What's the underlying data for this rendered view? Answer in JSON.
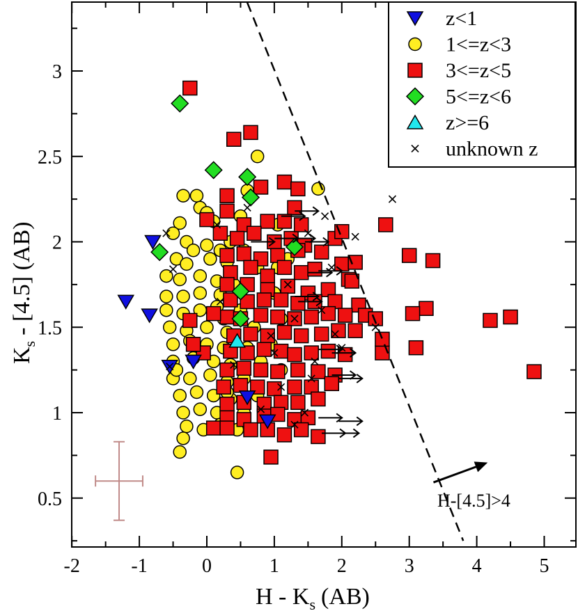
{
  "chart_data": {
    "type": "scatter",
    "xlabel": "H - K",
    "xlabel_sub": "s",
    "xlabel_suffix": "(AB)",
    "ylabel": "K",
    "ylabel_sub": "s",
    "ylabel_suffix": "- [4.5]  (AB)",
    "xlim": [
      -2,
      5.5
    ],
    "ylim": [
      0.25,
      3.4
    ],
    "xticks": [
      -2,
      -1,
      0,
      1,
      2,
      3,
      4,
      5
    ],
    "yticks": [
      0.5,
      1,
      1.5,
      2,
      2.5,
      3
    ],
    "legend_position": "top-right",
    "series": [
      {
        "name": "z<1",
        "marker": "triangle-down",
        "color": "#1010e0",
        "points": [
          [
            -1.2,
            1.65
          ],
          [
            -0.8,
            2.0
          ],
          [
            -0.85,
            1.57
          ],
          [
            -0.55,
            1.27
          ],
          [
            -0.2,
            1.3
          ],
          [
            0.6,
            1.09
          ],
          [
            0.9,
            0.95
          ]
        ]
      },
      {
        "name": "1<=z<3",
        "marker": "circle",
        "color": "#ffee22",
        "points": [
          [
            -0.35,
            2.27
          ],
          [
            -0.15,
            2.27
          ],
          [
            -0.1,
            2.2
          ],
          [
            -0.4,
            2.11
          ],
          [
            0.0,
            2.17
          ],
          [
            0.1,
            2.12
          ],
          [
            -0.5,
            2.05
          ],
          [
            -0.3,
            2.0
          ],
          [
            0.0,
            1.98
          ],
          [
            0.2,
            1.95
          ],
          [
            -0.45,
            1.9
          ],
          [
            -0.3,
            1.87
          ],
          [
            0.05,
            1.9
          ],
          [
            0.3,
            1.88
          ],
          [
            -0.6,
            1.8
          ],
          [
            -0.4,
            1.78
          ],
          [
            -0.1,
            1.8
          ],
          [
            0.15,
            1.77
          ],
          [
            0.4,
            1.75
          ],
          [
            -0.6,
            1.68
          ],
          [
            -0.35,
            1.68
          ],
          [
            -0.1,
            1.7
          ],
          [
            0.2,
            1.69
          ],
          [
            -0.6,
            1.6
          ],
          [
            -0.35,
            1.58
          ],
          [
            -0.1,
            1.6
          ],
          [
            0.15,
            1.62
          ],
          [
            -0.55,
            1.5
          ],
          [
            -0.3,
            1.48
          ],
          [
            0.0,
            1.5
          ],
          [
            0.3,
            1.47
          ],
          [
            -0.5,
            1.4
          ],
          [
            -0.25,
            1.42
          ],
          [
            0.0,
            1.4
          ],
          [
            0.25,
            1.38
          ],
          [
            -0.5,
            1.3
          ],
          [
            -0.2,
            1.32
          ],
          [
            0.1,
            1.3
          ],
          [
            0.35,
            1.28
          ],
          [
            -0.5,
            1.2
          ],
          [
            -0.25,
            1.2
          ],
          [
            0.05,
            1.22
          ],
          [
            0.3,
            1.18
          ],
          [
            -0.4,
            1.1
          ],
          [
            -0.15,
            1.12
          ],
          [
            0.1,
            1.1
          ],
          [
            0.35,
            1.08
          ],
          [
            -0.35,
            1.0
          ],
          [
            -0.1,
            1.02
          ],
          [
            0.15,
            1.0
          ],
          [
            -0.3,
            0.92
          ],
          [
            -0.05,
            0.9
          ],
          [
            -0.35,
            0.85
          ],
          [
            -0.4,
            0.77
          ],
          [
            0.45,
            0.65
          ],
          [
            0.75,
            2.5
          ],
          [
            0.6,
            2.3
          ],
          [
            0.5,
            2.15
          ],
          [
            0.7,
            2.05
          ],
          [
            0.55,
            1.95
          ],
          [
            0.75,
            1.85
          ],
          [
            0.6,
            1.75
          ],
          [
            0.5,
            1.6
          ],
          [
            0.7,
            1.5
          ],
          [
            0.6,
            1.38
          ],
          [
            0.8,
            1.3
          ],
          [
            0.55,
            1.2
          ],
          [
            0.75,
            1.1
          ],
          [
            0.55,
            1.0
          ],
          [
            0.45,
            0.9
          ],
          [
            1.05,
            1.85
          ],
          [
            1.0,
            1.7
          ],
          [
            1.1,
            1.55
          ],
          [
            0.95,
            1.4
          ],
          [
            1.1,
            1.25
          ],
          [
            1.2,
            1.9
          ],
          [
            1.65,
            2.31
          ],
          [
            1.05,
            2.1
          ],
          [
            0.35,
            2.0
          ],
          [
            0.25,
            1.55
          ],
          [
            0.4,
            1.45
          ],
          [
            0.3,
            1.12
          ],
          [
            -0.2,
            1.95
          ],
          [
            -0.45,
            1.25
          ],
          [
            0.2,
            0.93
          ]
        ]
      },
      {
        "name": "3<=z<5",
        "marker": "square",
        "color": "#ee1111",
        "points": [
          [
            -0.25,
            2.9
          ],
          [
            0.65,
            2.64
          ],
          [
            0.4,
            2.6
          ],
          [
            0.8,
            2.32
          ],
          [
            1.15,
            2.35
          ],
          [
            1.35,
            2.31
          ],
          [
            0.3,
            2.27
          ],
          [
            1.3,
            2.2
          ],
          [
            0.0,
            2.13
          ],
          [
            0.3,
            2.18
          ],
          [
            0.55,
            2.1
          ],
          [
            0.9,
            2.12
          ],
          [
            1.15,
            2.12
          ],
          [
            0.2,
            2.05
          ],
          [
            0.45,
            2.02
          ],
          [
            0.7,
            2.05
          ],
          [
            1.0,
            2.0
          ],
          [
            1.25,
            2.02
          ],
          [
            1.45,
            1.98
          ],
          [
            1.9,
            2.02
          ],
          [
            2.0,
            2.06
          ],
          [
            0.3,
            1.92
          ],
          [
            0.55,
            1.93
          ],
          [
            0.8,
            1.9
          ],
          [
            1.05,
            1.92
          ],
          [
            1.35,
            1.95
          ],
          [
            1.7,
            1.94
          ],
          [
            0.35,
            1.82
          ],
          [
            0.65,
            1.85
          ],
          [
            0.9,
            1.8
          ],
          [
            1.15,
            1.85
          ],
          [
            1.4,
            1.82
          ],
          [
            2.0,
            1.87
          ],
          [
            2.2,
            1.88
          ],
          [
            2.1,
            1.78
          ],
          [
            0.3,
            1.75
          ],
          [
            0.6,
            1.75
          ],
          [
            0.9,
            1.72
          ],
          [
            1.2,
            1.74
          ],
          [
            1.5,
            1.7
          ],
          [
            1.8,
            1.72
          ],
          [
            2.15,
            1.77
          ],
          [
            0.35,
            1.66
          ],
          [
            0.6,
            1.65
          ],
          [
            0.85,
            1.66
          ],
          [
            1.1,
            1.66
          ],
          [
            1.35,
            1.64
          ],
          [
            1.6,
            1.65
          ],
          [
            1.9,
            1.65
          ],
          [
            2.25,
            1.63
          ],
          [
            0.3,
            1.56
          ],
          [
            0.5,
            1.55
          ],
          [
            0.8,
            1.57
          ],
          [
            1.05,
            1.56
          ],
          [
            1.3,
            1.55
          ],
          [
            1.55,
            1.56
          ],
          [
            1.8,
            1.58
          ],
          [
            2.05,
            1.57
          ],
          [
            2.35,
            1.57
          ],
          [
            2.5,
            1.55
          ],
          [
            0.4,
            1.45
          ],
          [
            0.65,
            1.46
          ],
          [
            0.9,
            1.45
          ],
          [
            1.15,
            1.47
          ],
          [
            1.4,
            1.45
          ],
          [
            1.7,
            1.46
          ],
          [
            1.95,
            1.48
          ],
          [
            2.2,
            1.48
          ],
          [
            2.6,
            1.35
          ],
          [
            0.35,
            1.36
          ],
          [
            0.6,
            1.35
          ],
          [
            0.85,
            1.37
          ],
          [
            1.1,
            1.36
          ],
          [
            1.3,
            1.34
          ],
          [
            1.55,
            1.35
          ],
          [
            1.8,
            1.36
          ],
          [
            2.05,
            1.34
          ],
          [
            0.3,
            1.25
          ],
          [
            0.55,
            1.26
          ],
          [
            0.8,
            1.25
          ],
          [
            1.05,
            1.24
          ],
          [
            1.35,
            1.25
          ],
          [
            1.65,
            1.24
          ],
          [
            1.9,
            1.22
          ],
          [
            0.25,
            1.15
          ],
          [
            0.5,
            1.16
          ],
          [
            0.75,
            1.15
          ],
          [
            1.0,
            1.14
          ],
          [
            1.3,
            1.15
          ],
          [
            1.55,
            1.15
          ],
          [
            1.85,
            1.17
          ],
          [
            0.3,
            1.05
          ],
          [
            0.55,
            1.06
          ],
          [
            0.85,
            1.05
          ],
          [
            1.1,
            1.06
          ],
          [
            1.35,
            1.06
          ],
          [
            1.65,
            1.08
          ],
          [
            0.3,
            0.97
          ],
          [
            0.55,
            0.96
          ],
          [
            0.85,
            0.98
          ],
          [
            1.05,
            0.99
          ],
          [
            1.3,
            0.96
          ],
          [
            1.5,
            0.97
          ],
          [
            0.1,
            0.91
          ],
          [
            0.3,
            0.91
          ],
          [
            0.65,
            0.9
          ],
          [
            0.9,
            0.9
          ],
          [
            1.15,
            0.87
          ],
          [
            1.4,
            0.9
          ],
          [
            1.65,
            0.86
          ],
          [
            0.95,
            0.74
          ],
          [
            -0.25,
            1.54
          ],
          [
            -0.05,
            1.35
          ],
          [
            -0.2,
            1.4
          ],
          [
            0.1,
            1.58
          ],
          [
            2.65,
            2.1
          ],
          [
            3.0,
            1.92
          ],
          [
            3.35,
            1.89
          ],
          [
            3.25,
            1.61
          ],
          [
            3.05,
            1.58
          ],
          [
            3.1,
            1.38
          ],
          [
            4.2,
            1.54
          ],
          [
            4.5,
            1.56
          ],
          [
            4.85,
            1.24
          ],
          [
            2.6,
            1.43
          ],
          [
            1.4,
            2.1
          ],
          [
            1.6,
            1.84
          ]
        ]
      },
      {
        "name": "5<=z<6",
        "marker": "diamond",
        "color": "#22dd22",
        "points": [
          [
            -0.4,
            2.81
          ],
          [
            0.1,
            2.42
          ],
          [
            0.6,
            2.38
          ],
          [
            0.65,
            2.26
          ],
          [
            -0.7,
            1.94
          ],
          [
            0.5,
            1.71
          ],
          [
            0.5,
            1.55
          ],
          [
            1.3,
            1.97
          ]
        ]
      },
      {
        "name": "z>=6",
        "marker": "triangle-up",
        "color": "#22e8ee",
        "points": [
          [
            0.45,
            1.42
          ]
        ]
      },
      {
        "name": "unknown z",
        "marker": "cross",
        "color": "#000000",
        "points": [
          [
            -0.6,
            2.05
          ],
          [
            -0.5,
            1.84
          ],
          [
            2.75,
            2.25
          ],
          [
            2.2,
            2.03
          ],
          [
            1.5,
            2.05
          ],
          [
            1.85,
            1.85
          ],
          [
            1.7,
            1.6
          ],
          [
            2.0,
            1.38
          ],
          [
            1.9,
            1.46
          ],
          [
            1.6,
            1.3
          ],
          [
            1.45,
            1.0
          ],
          [
            1.3,
            0.93
          ],
          [
            1.0,
            1.35
          ],
          [
            1.2,
            1.75
          ],
          [
            0.4,
            1.28
          ],
          [
            0.95,
            1.45
          ],
          [
            0.15,
            2.1
          ],
          [
            0.6,
            2.2
          ],
          [
            2.5,
            1.5
          ],
          [
            1.3,
            1.55
          ],
          [
            1.1,
            1.15
          ],
          [
            0.8,
            1.02
          ],
          [
            -0.55,
            1.27
          ],
          [
            0.2,
            1.65
          ],
          [
            1.75,
            2.15
          ],
          [
            1.55,
            1.2
          ]
        ]
      }
    ],
    "arrows": [
      [
        0.9,
        2.02
      ],
      [
        1.15,
        2.02
      ],
      [
        0.55,
        2.0
      ],
      [
        1.35,
        2.0
      ],
      [
        1.4,
        1.82
      ],
      [
        1.55,
        1.83
      ],
      [
        1.2,
        1.68
      ],
      [
        1.25,
        1.65
      ],
      [
        1.55,
        1.37
      ],
      [
        1.75,
        1.35
      ],
      [
        1.75,
        1.22
      ],
      [
        1.85,
        1.2
      ],
      [
        1.55,
        0.97
      ],
      [
        1.6,
        0.88
      ],
      [
        1.8,
        0.88
      ],
      [
        1.85,
        0.95
      ],
      [
        1.0,
        2.15
      ],
      [
        1.2,
        2.18
      ]
    ],
    "error_bar": {
      "x": -1.3,
      "y": 0.6,
      "xerr": 0.35,
      "yerr": 0.23
    },
    "threshold_line": {
      "x1": 0.6,
      "y1": 3.4,
      "x2": 3.8,
      "y2": 0.25
    },
    "annotation": {
      "text": "H-[4.5]>4",
      "arrow_from": [
        3.4,
        0.6
      ],
      "arrow_to": [
        4.1,
        0.7
      ]
    }
  }
}
